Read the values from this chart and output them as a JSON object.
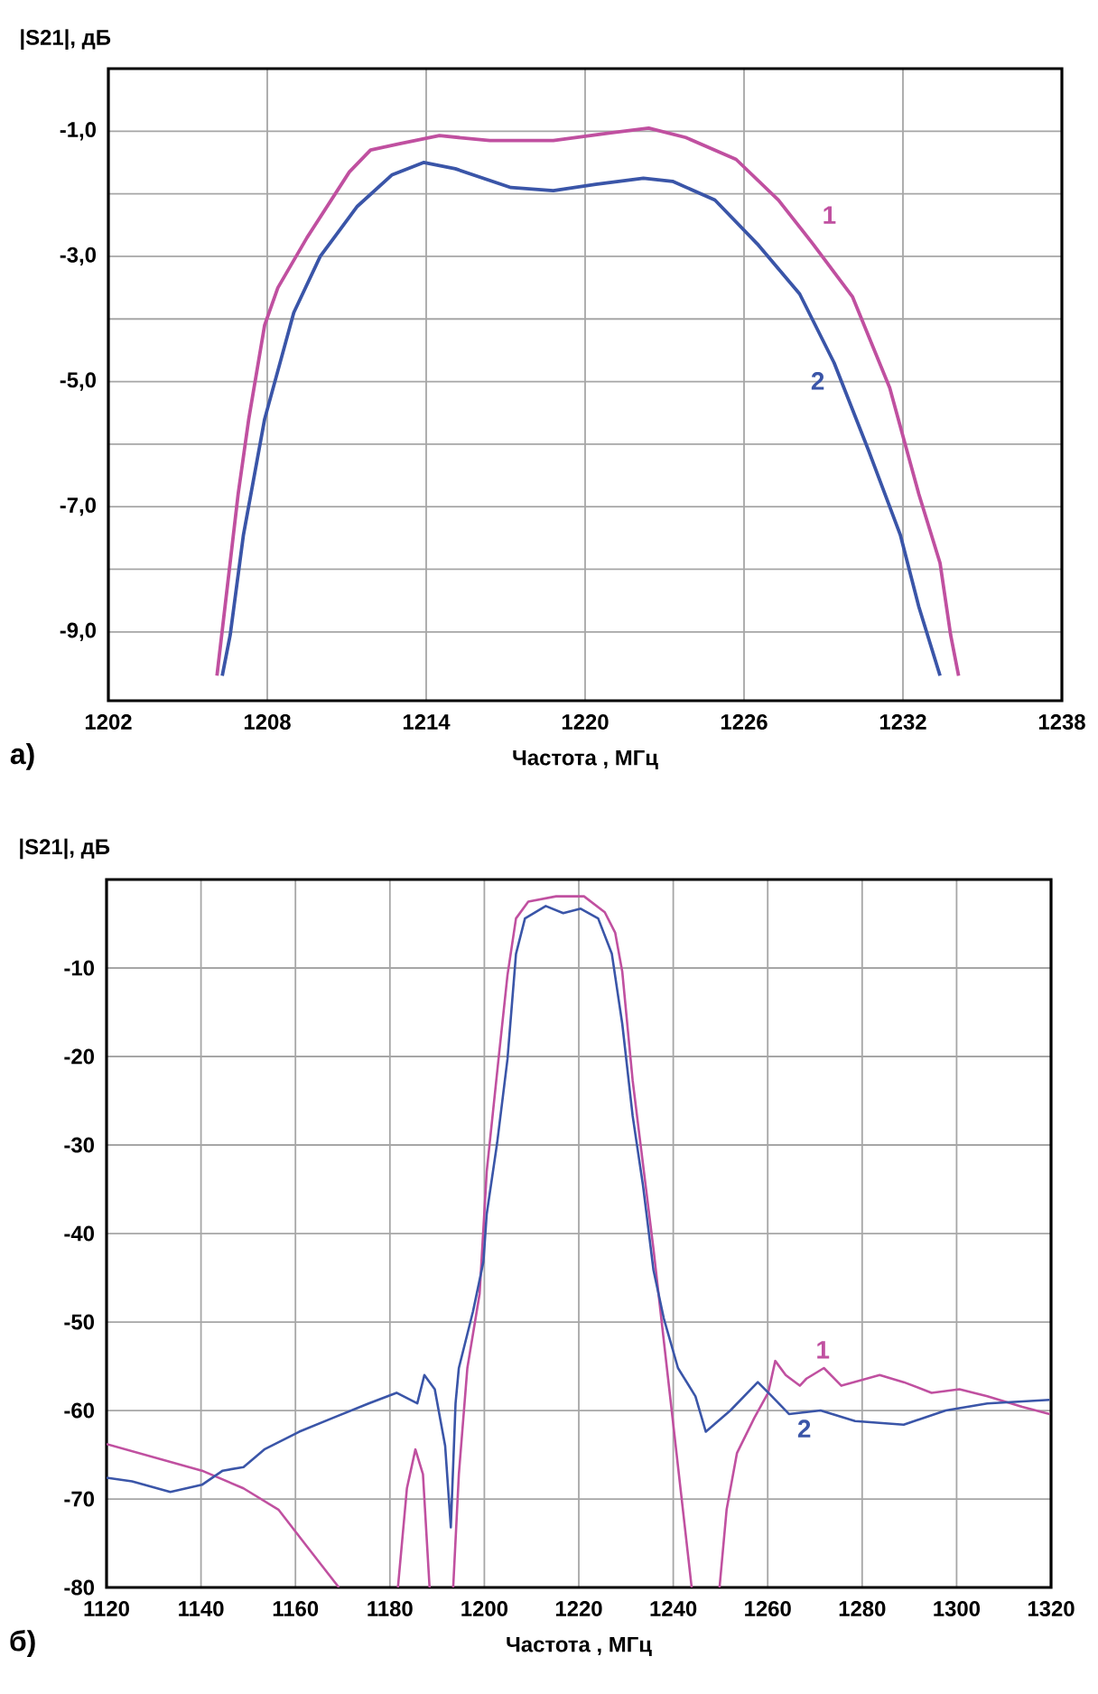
{
  "chart_data": [
    {
      "type": "line",
      "xlabel": "Частота , МГц",
      "ylabel": "|S21|, дБ",
      "annotations": [
        "а)"
      ],
      "grid": true,
      "xlim": [
        1202,
        1238
      ],
      "ylim": [
        -10.1,
        0
      ],
      "xticks": [
        1202,
        1208,
        1214,
        1220,
        1226,
        1232,
        1238
      ],
      "yticks": [
        {
          "value": -9,
          "label": "-9,0"
        },
        {
          "value": -8,
          "label": null
        },
        {
          "value": -7,
          "label": "-7,0"
        },
        {
          "value": -6,
          "label": null
        },
        {
          "value": -5,
          "label": "-5,0"
        },
        {
          "value": -4,
          "label": null
        },
        {
          "value": -3,
          "label": "-3,0"
        },
        {
          "value": -2,
          "label": null
        },
        {
          "value": -1,
          "label": "-1,0"
        }
      ],
      "series": [
        {
          "name": "1",
          "color": "#c050a0",
          "x": [
            1206.1,
            1206.5,
            1206.9,
            1207.3,
            1207.9,
            1208.4,
            1209.5,
            1211.1,
            1211.9,
            1213,
            1214.5,
            1216.4,
            1218.8,
            1220.9,
            1222.4,
            1223.8,
            1225.7,
            1227.3,
            1228.6,
            1230.1,
            1231.5,
            1232.6,
            1233.4,
            1233.8,
            1234.1
          ],
          "values": [
            -9.7,
            -8.25,
            -6.8,
            -5.6,
            -4.1,
            -3.5,
            -2.7,
            -1.65,
            -1.3,
            -1.2,
            -1.07,
            -1.15,
            -1.15,
            -1.03,
            -0.95,
            -1.1,
            -1.45,
            -2.1,
            -2.8,
            -3.65,
            -5.1,
            -6.8,
            -7.9,
            -9.05,
            -9.7
          ]
        },
        {
          "name": "2",
          "color": "#3a55a8",
          "x": [
            1206.3,
            1206.6,
            1207.1,
            1207.9,
            1209,
            1210,
            1211.4,
            1212.7,
            1213.9,
            1215.1,
            1217.2,
            1218.8,
            1220.4,
            1222.2,
            1223.3,
            1224.9,
            1226.5,
            1228.1,
            1229.4,
            1230.7,
            1231.9,
            1232.6,
            1233.4
          ],
          "values": [
            -9.7,
            -9.05,
            -7.45,
            -5.6,
            -3.9,
            -3.0,
            -2.2,
            -1.7,
            -1.5,
            -1.6,
            -1.9,
            -1.95,
            -1.85,
            -1.75,
            -1.8,
            -2.1,
            -2.8,
            -3.6,
            -4.7,
            -6.1,
            -7.45,
            -8.6,
            -9.7
          ]
        }
      ]
    },
    {
      "type": "line",
      "xlabel": "Частота , МГц",
      "ylabel": "|S21|, дБ",
      "annotations": [
        "б)"
      ],
      "grid": true,
      "xlim": [
        1120,
        1320
      ],
      "ylim": [
        -80,
        0
      ],
      "xticks": [
        1120,
        1140,
        1160,
        1180,
        1200,
        1220,
        1240,
        1260,
        1280,
        1300,
        1320
      ],
      "yticks": [
        -80,
        -70,
        -60,
        -50,
        -40,
        -30,
        -20,
        -10
      ],
      "series": [
        {
          "name": "1",
          "color": "#c050a0",
          "x": [
            1120,
            1140.2,
            1149,
            1156.4,
            1162.2,
            1169.2,
            1175,
            1181.7,
            1183.6,
            1185.4,
            1187,
            1188.4,
            1191,
            1193.4,
            1194.6,
            1196.4,
            1199,
            1200.5,
            1203,
            1204.9,
            1206.7,
            1209.3,
            1215.2,
            1221.1,
            1225.5,
            1227.7,
            1229.2,
            1231.4,
            1233.6,
            1235.8,
            1237.3,
            1239.5,
            1241.7,
            1243.9,
            1247,
            1249.8,
            1251.3,
            1253.5,
            1257.2,
            1260.1,
            1261.6,
            1263.8,
            1266.8,
            1268.2,
            1271.9,
            1275.6,
            1283.7,
            1288.8,
            1294.7,
            1300.6,
            1306.5,
            1313.9,
            1319.7
          ],
          "values": [
            -63.8,
            -66.8,
            -68.8,
            -71.2,
            -75.2,
            -80,
            null,
            -80,
            -68.8,
            -64.4,
            -67.2,
            -80,
            null,
            -80,
            -67.2,
            -55.2,
            -46.8,
            -33,
            -20.3,
            -10.8,
            -4.4,
            -2.5,
            -1.9,
            -1.9,
            -3.7,
            -6.0,
            -10.4,
            -22.7,
            -32.2,
            -41.7,
            -48.8,
            -59.2,
            -69.6,
            -80,
            null,
            -80,
            -71.2,
            -64.8,
            -60.8,
            -58,
            -54.4,
            -56,
            -57.2,
            -56.4,
            -55.2,
            -57.2,
            -56,
            -56.8,
            -58,
            -57.6,
            -58.4,
            -59.6,
            -60.4
          ]
        },
        {
          "name": "2",
          "color": "#3a55a8",
          "x": [
            1120,
            1125.4,
            1133.5,
            1140.2,
            1144.6,
            1149,
            1153.4,
            1160.8,
            1168.1,
            1175.5,
            1181.4,
            1185.8,
            1187.3,
            1189.5,
            1191.7,
            1192.9,
            1193.9,
            1194.6,
            1197.6,
            1199.8,
            1200.5,
            1202.7,
            1204.9,
            1206.7,
            1208.6,
            1213,
            1216.7,
            1220.4,
            1224.1,
            1227,
            1229.2,
            1231.4,
            1233.6,
            1235.8,
            1238,
            1241,
            1244.7,
            1246.9,
            1252.1,
            1257.9,
            1260.9,
            1264.5,
            1271.2,
            1278.5,
            1288.8,
            1297.7,
            1306.5,
            1319.7
          ],
          "values": [
            -67.6,
            -68,
            -69.2,
            -68.4,
            -66.8,
            -66.4,
            -64.4,
            -62.4,
            -60.8,
            -59.2,
            -58,
            -59.2,
            -56,
            -57.6,
            -64,
            -73.2,
            -59.2,
            -55.2,
            -48.8,
            -43.2,
            -37.8,
            -29.8,
            -20.3,
            -8.4,
            -4.4,
            -3.0,
            -3.8,
            -3.3,
            -4.4,
            -8.4,
            -16.3,
            -26.7,
            -34.6,
            -44.1,
            -49.6,
            -55.2,
            -58.4,
            -62.4,
            -60,
            -56.8,
            -58.4,
            -60.4,
            -60,
            -61.2,
            -61.6,
            -60,
            -59.2,
            -58.8
          ]
        }
      ]
    }
  ]
}
